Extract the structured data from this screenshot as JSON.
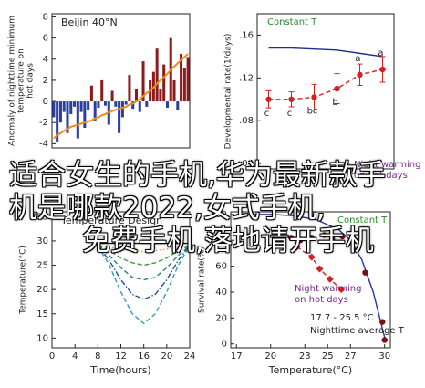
{
  "chart_data": [
    {
      "type": "bar",
      "title": "Beijin 40°N",
      "ylabel": [
        "Anomaly of nighttime minimum",
        "temperature on",
        "hot days"
      ],
      "values": [
        -1.5,
        -3.8,
        -2,
        -1,
        -3,
        -1.2,
        -0.5,
        -3.5,
        -1,
        -2.5,
        -0.8,
        1.5,
        -1.8,
        -0.6,
        2,
        -0.4,
        -2.2,
        1,
        -0.5,
        -3,
        -1.5,
        -0.3,
        2.5,
        -0.7,
        1.2,
        -1,
        3.8,
        -0.5,
        2,
        2.8,
        5,
        1.2,
        3.5,
        -0.6,
        6,
        2,
        -0.8,
        4.5,
        3.2,
        4.2
      ],
      "positive_color": "#8b1c1c",
      "negative_color": "#2b3f9e",
      "series": [
        {
          "color": "#f08a1c",
          "line_style": "solid",
          "values": [
            -3.5,
            -3.2,
            -3,
            -2.8,
            -2.6,
            -2.4,
            -2.3,
            -2.2,
            -2.1,
            -2,
            -1.9,
            -1.8,
            -1.6,
            -1.5,
            -1.3,
            -1.2,
            -1,
            -0.9,
            -0.8,
            -0.7,
            -0.6,
            -0.5,
            -0.3,
            -0.2,
            0,
            0.2,
            0.5,
            0.8,
            1,
            1.3,
            1.7,
            2,
            2.3,
            2.6,
            3,
            3.3,
            3.6,
            3.9,
            4.2,
            4.5
          ]
        }
      ],
      "ylim": [
        -4.4,
        8.3
      ],
      "yticks": [
        -4,
        -2,
        0,
        2,
        4,
        6,
        8
      ]
    },
    {
      "type": "scatter",
      "ylabel": [
        "Developmental rate(1/days)"
      ],
      "categories": [
        null,
        null,
        null,
        null,
        null,
        null
      ],
      "series": [
        {
          "color": "#1f2f8f",
          "line_style": "solid",
          "values": [
            0.148,
            0.148,
            0.147,
            0.146,
            0.143,
            0.14
          ]
        },
        {
          "color": "#d42020",
          "line_style": "dashed",
          "marker": "circle",
          "values": [
            0.1,
            0.1,
            0.102,
            0.11,
            0.123,
            0.128
          ],
          "errors": [
            0.008,
            0.007,
            0.012,
            0.014,
            0.01,
            0.012
          ],
          "point_labels": [
            "c",
            "c",
            "bc",
            "b",
            "a",
            "a"
          ]
        }
      ],
      "annotations": [
        "Constant T",
        "Night warming",
        "on hot days"
      ],
      "ylim": [
        0.035,
        0.18
      ],
      "yticks": [
        {
          "value": 0.04,
          "label": ".04"
        },
        {
          "value": 0.08,
          "label": ".08"
        },
        {
          "value": 0.12,
          "label": ".12"
        },
        {
          "value": 0.16,
          "label": ".16"
        }
      ]
    },
    {
      "type": "line",
      "title": "Temperature Design",
      "ylabel": [
        "Temperature(°C)"
      ],
      "xlabel": "Time(hours)",
      "x": [
        8,
        10,
        12,
        14,
        16,
        18,
        20,
        22,
        24
      ],
      "series": [
        {
          "color": "#111111",
          "line_style": "solid",
          "values": [
            29.5,
            29.5,
            29.5,
            29.5,
            29.5,
            29.5,
            29.5,
            29.5,
            29.5
          ]
        },
        {
          "color": "#e0a020",
          "line_style": "dotted",
          "values": [
            29,
            28.7,
            28.3,
            28,
            27.8,
            28,
            28.3,
            28.7,
            29
          ]
        },
        {
          "color": "#3a9a3a",
          "line_style": "dashed",
          "values": [
            29,
            28,
            26.5,
            25.5,
            25,
            25.5,
            26.5,
            28,
            29
          ]
        },
        {
          "color": "#1f8a8a",
          "line_style": "dashed",
          "values": [
            29,
            27,
            24.5,
            22.5,
            22,
            22.5,
            24.5,
            27,
            29
          ]
        },
        {
          "color": "#2050a0",
          "line_style": "dashdot",
          "values": [
            29,
            26,
            22,
            19,
            18,
            19,
            22,
            26,
            29
          ]
        },
        {
          "color": "#30a0b0",
          "line_style": "dashed",
          "values": [
            29,
            25,
            19.5,
            15,
            13,
            15,
            19.5,
            25,
            29
          ]
        }
      ],
      "xlim": [
        0,
        24
      ],
      "xticks": [
        0,
        4,
        8,
        12,
        16,
        20,
        24
      ],
      "ylim": [
        8,
        36
      ],
      "yticks": [
        10,
        15,
        20,
        25,
        30,
        35
      ]
    },
    {
      "type": "scatter",
      "ylabel": [
        "Survival rate(%)"
      ],
      "xlabel": "Temperature(°C)",
      "series": [
        {
          "color": "#2236a0",
          "line_style": "solid",
          "x": [
            17,
            20,
            22,
            24,
            26,
            27,
            28,
            29,
            30
          ],
          "values": [
            100,
            100,
            99,
            96,
            88,
            80,
            65,
            40,
            5
          ]
        },
        {
          "color": "#7a1010",
          "line_style": "none",
          "marker": "circle",
          "x": [
            21.8,
            22.6,
            23.6,
            24.7,
            25.4,
            26.3,
            28.3,
            29.8,
            30
          ],
          "values": [
            82,
            80,
            82,
            84,
            81,
            83,
            55,
            17,
            3
          ]
        },
        {
          "color": "#d42020",
          "line_style": "dashed",
          "marker": "diamond",
          "x": [
            22.3,
            23.6,
            24.3,
            25.2,
            26.2
          ],
          "values": [
            75,
            67,
            58,
            50,
            42
          ]
        }
      ],
      "annotations": [
        "Constant T",
        "Night warming",
        "on hot days",
        "17.7 - 25.5 °C",
        "Nighttime average T"
      ],
      "xlim": [
        16.5,
        30.5
      ],
      "xticks": [
        17,
        20,
        23,
        25,
        27,
        30
      ],
      "ylim": [
        -3,
        102
      ],
      "yticks": [
        0,
        20,
        40,
        60,
        80,
        100
      ]
    }
  ],
  "overlay": {
    "lines": [
      "适合女生的手机,华为最新款手",
      "机是哪款2022,女式手机,",
      "免费手机,落地请开手机"
    ]
  }
}
